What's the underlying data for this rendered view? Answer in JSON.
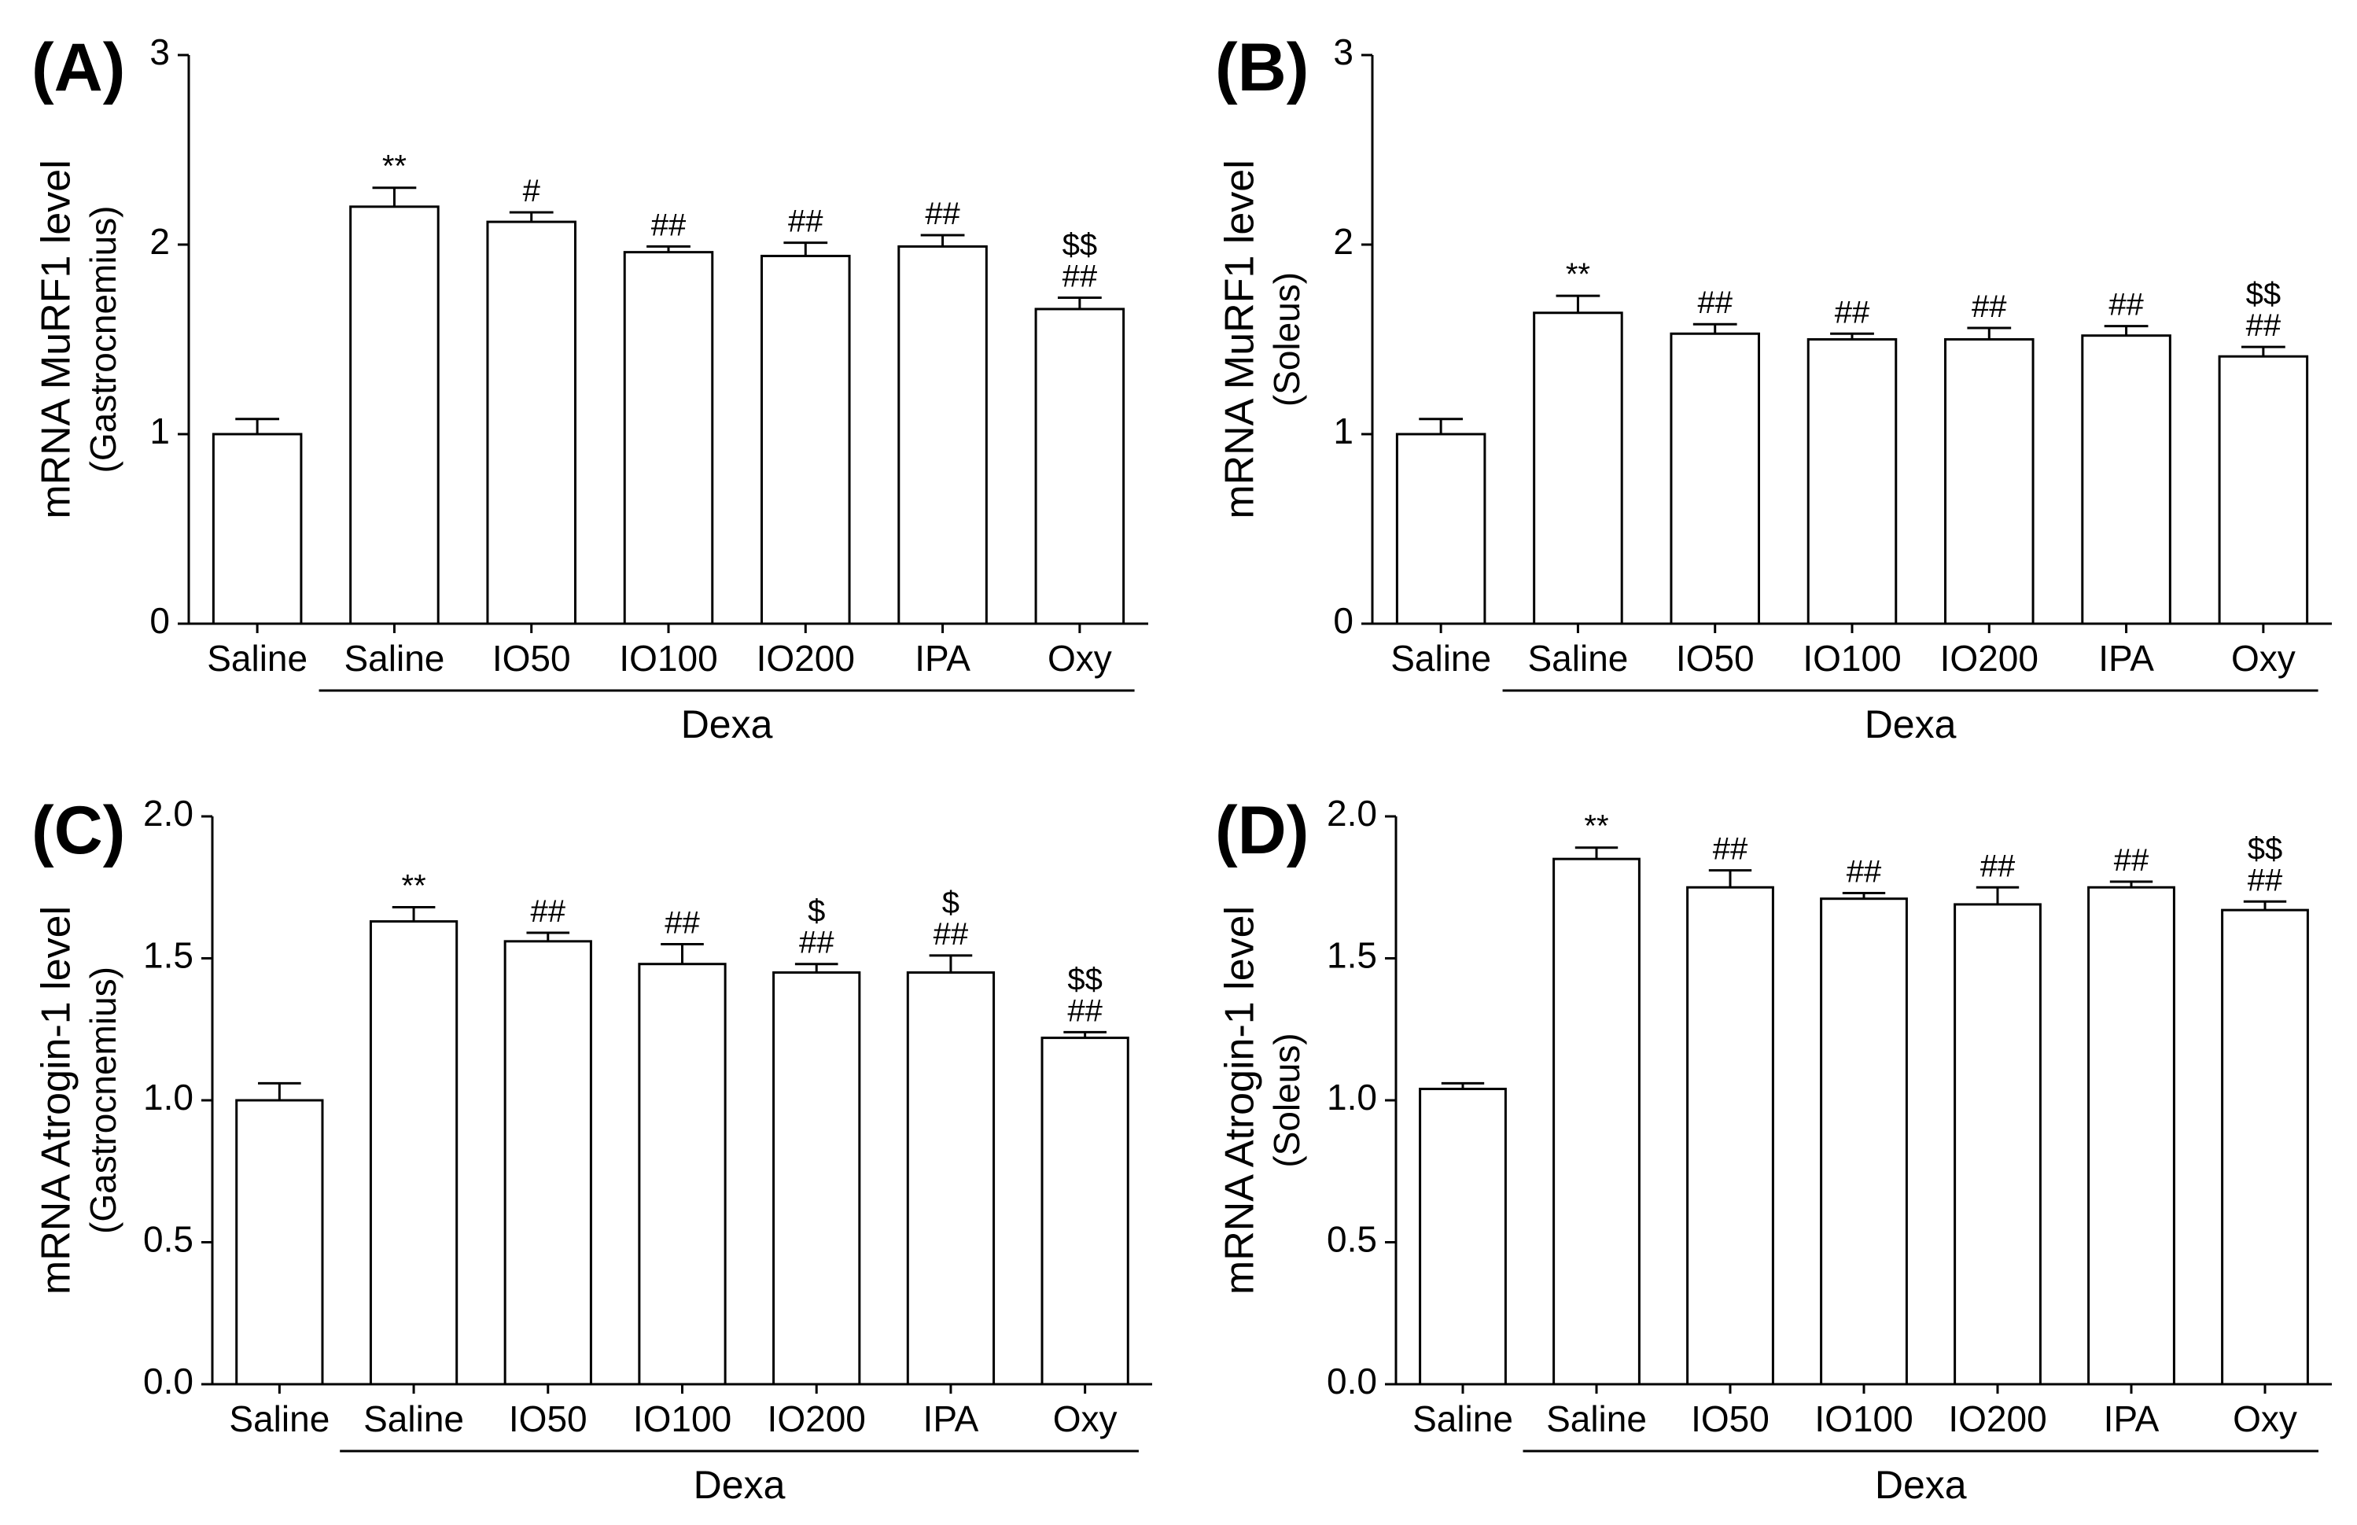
{
  "figure": {
    "group_label": "Dexa",
    "bar_fill": "#ffffff",
    "stroke_color": "#000000"
  },
  "chart_data": [
    {
      "type": "bar",
      "panel_label": "(A)",
      "ylabel": "mRNA MuRF1 level",
      "ylabel_sub": "(Gastrocnemius)",
      "categories": [
        "Saline",
        "Saline",
        "IO50",
        "IO100",
        "IO200",
        "IPA",
        "Oxy"
      ],
      "group": "Dexa",
      "group_span": [
        1,
        6
      ],
      "values": [
        1.0,
        2.2,
        2.12,
        1.96,
        1.94,
        1.99,
        1.66
      ],
      "errors": [
        0.08,
        0.1,
        0.05,
        0.03,
        0.07,
        0.06,
        0.06
      ],
      "significance": [
        [],
        [
          "**"
        ],
        [
          "#"
        ],
        [
          "##"
        ],
        [
          "##"
        ],
        [
          "##"
        ],
        [
          "$$",
          "##"
        ]
      ],
      "ylim": [
        0,
        3
      ],
      "yticks": [
        0,
        1,
        2,
        3
      ],
      "ytick_labels": [
        "0",
        "1",
        "2",
        "3"
      ]
    },
    {
      "type": "bar",
      "panel_label": "(B)",
      "ylabel": "mRNA MuRF1 level",
      "ylabel_sub": "(Soleus)",
      "categories": [
        "Saline",
        "Saline",
        "IO50",
        "IO100",
        "IO200",
        "IPA",
        "Oxy"
      ],
      "group": "Dexa",
      "group_span": [
        1,
        6
      ],
      "values": [
        1.0,
        1.64,
        1.53,
        1.5,
        1.5,
        1.52,
        1.41
      ],
      "errors": [
        0.08,
        0.09,
        0.05,
        0.03,
        0.06,
        0.05,
        0.05
      ],
      "significance": [
        [],
        [
          "**"
        ],
        [
          "##"
        ],
        [
          "##"
        ],
        [
          "##"
        ],
        [
          "##"
        ],
        [
          "$$",
          "##"
        ]
      ],
      "ylim": [
        0,
        3
      ],
      "yticks": [
        0,
        1,
        2,
        3
      ],
      "ytick_labels": [
        "0",
        "1",
        "2",
        "3"
      ]
    },
    {
      "type": "bar",
      "panel_label": "(C)",
      "ylabel": "mRNA Atrogin-1 level",
      "ylabel_sub": "(Gastrocnemius)",
      "categories": [
        "Saline",
        "Saline",
        "IO50",
        "IO100",
        "IO200",
        "IPA",
        "Oxy"
      ],
      "group": "Dexa",
      "group_span": [
        1,
        6
      ],
      "values": [
        1.0,
        1.63,
        1.56,
        1.48,
        1.45,
        1.45,
        1.22
      ],
      "errors": [
        0.06,
        0.05,
        0.03,
        0.07,
        0.03,
        0.06,
        0.02
      ],
      "significance": [
        [],
        [
          "**"
        ],
        [
          "##"
        ],
        [
          "##"
        ],
        [
          "$",
          "##"
        ],
        [
          "$",
          "##"
        ],
        [
          "$$",
          "##"
        ]
      ],
      "ylim": [
        0,
        2.0
      ],
      "yticks": [
        0,
        0.5,
        1.0,
        1.5,
        2.0
      ],
      "ytick_labels": [
        "0.0",
        "0.5",
        "1.0",
        "1.5",
        "2.0"
      ]
    },
    {
      "type": "bar",
      "panel_label": "(D)",
      "ylabel": "mRNA Atrogin-1 level",
      "ylabel_sub": "(Soleus)",
      "categories": [
        "Saline",
        "Saline",
        "IO50",
        "IO100",
        "IO200",
        "IPA",
        "Oxy"
      ],
      "group": "Dexa",
      "group_span": [
        1,
        6
      ],
      "values": [
        1.04,
        1.85,
        1.75,
        1.71,
        1.69,
        1.75,
        1.67
      ],
      "errors": [
        0.02,
        0.04,
        0.06,
        0.02,
        0.06,
        0.02,
        0.03
      ],
      "significance": [
        [],
        [
          "**"
        ],
        [
          "##"
        ],
        [
          "##"
        ],
        [
          "##"
        ],
        [
          "##"
        ],
        [
          "$$",
          "##"
        ]
      ],
      "ylim": [
        0,
        2.0
      ],
      "yticks": [
        0,
        0.5,
        1.0,
        1.5,
        2.0
      ],
      "ytick_labels": [
        "0.0",
        "0.5",
        "1.0",
        "1.5",
        "2.0"
      ]
    }
  ]
}
